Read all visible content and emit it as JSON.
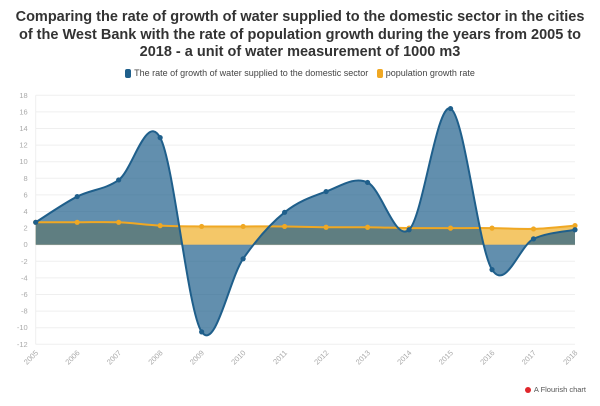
{
  "chart_data": {
    "type": "area",
    "title": "Comparing the rate of growth of water supplied to the domestic sector in the cities of the West Bank with the rate of population growth during the years from 2005 to 2018 - a unit of water measurement of 1000 m3",
    "x": [
      "2005",
      "2006",
      "2007",
      "2008",
      "2009",
      "2010",
      "2011",
      "2012",
      "2013",
      "2014",
      "2015",
      "2016",
      "2017",
      "2018"
    ],
    "series": [
      {
        "name": "The rate of growth of water supplied to the domestic sector",
        "color": "#1f5f8b",
        "values": [
          2.7,
          5.8,
          7.8,
          12.9,
          -10.5,
          -1.7,
          3.9,
          6.4,
          7.5,
          1.8,
          16.4,
          -3.0,
          0.7,
          1.8
        ]
      },
      {
        "name": "population growth rate",
        "color": "#f0a823",
        "values": [
          2.7,
          2.7,
          2.7,
          2.3,
          2.2,
          2.2,
          2.2,
          2.1,
          2.1,
          2.0,
          2.0,
          2.0,
          1.9,
          2.3
        ]
      }
    ],
    "ylim": [
      -12,
      18
    ],
    "yticks": [
      -12,
      -10,
      -8,
      -6,
      -4,
      -2,
      0,
      2,
      4,
      6,
      8,
      10,
      12,
      14,
      16,
      18
    ],
    "xlabel": "",
    "ylabel": "",
    "grid": true,
    "legend": "top-center"
  },
  "footer": "A Flourish chart"
}
